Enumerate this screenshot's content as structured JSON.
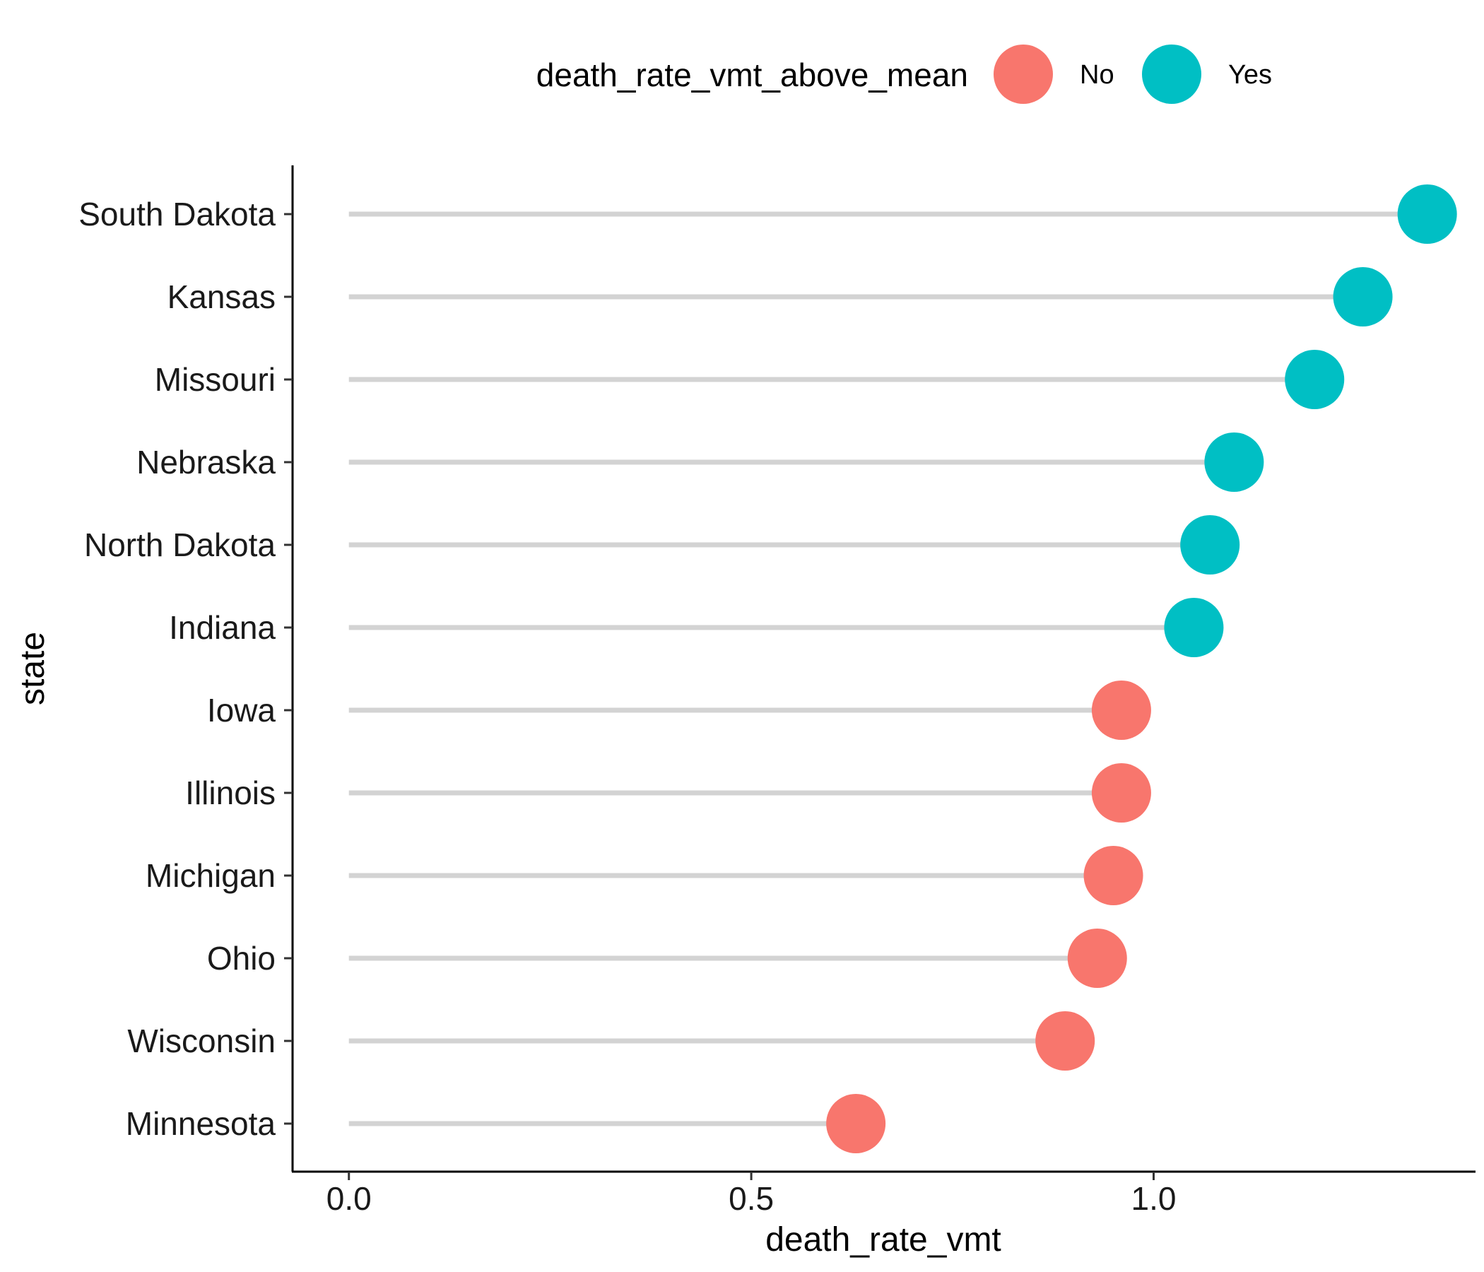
{
  "chart_data": {
    "type": "lollipop",
    "xlabel": "death_rate_vmt",
    "ylabel": "state",
    "xlim": [
      -0.07,
      1.4
    ],
    "x_ticks": [
      {
        "value": 0.0,
        "label": "0.0"
      },
      {
        "value": 0.5,
        "label": "0.5"
      },
      {
        "value": 1.0,
        "label": "1.0"
      }
    ],
    "grid": false,
    "legend": {
      "title": "death_rate_vmt_above_mean",
      "position": "top",
      "entries": [
        {
          "label": "No",
          "color": "#F8766D"
        },
        {
          "label": "Yes",
          "color": "#00BFC4"
        }
      ]
    },
    "stem_color": "#d3d3d3",
    "points": [
      {
        "state": "South Dakota",
        "value": 1.34,
        "above_mean": "Yes"
      },
      {
        "state": "Kansas",
        "value": 1.26,
        "above_mean": "Yes"
      },
      {
        "state": "Missouri",
        "value": 1.2,
        "above_mean": "Yes"
      },
      {
        "state": "Nebraska",
        "value": 1.1,
        "above_mean": "Yes"
      },
      {
        "state": "North Dakota",
        "value": 1.07,
        "above_mean": "Yes"
      },
      {
        "state": "Indiana",
        "value": 1.05,
        "above_mean": "Yes"
      },
      {
        "state": "Iowa",
        "value": 0.96,
        "above_mean": "No"
      },
      {
        "state": "Illinois",
        "value": 0.96,
        "above_mean": "No"
      },
      {
        "state": "Michigan",
        "value": 0.95,
        "above_mean": "No"
      },
      {
        "state": "Ohio",
        "value": 0.93,
        "above_mean": "No"
      },
      {
        "state": "Wisconsin",
        "value": 0.89,
        "above_mean": "No"
      },
      {
        "state": "Minnesota",
        "value": 0.63,
        "above_mean": "No"
      }
    ]
  }
}
